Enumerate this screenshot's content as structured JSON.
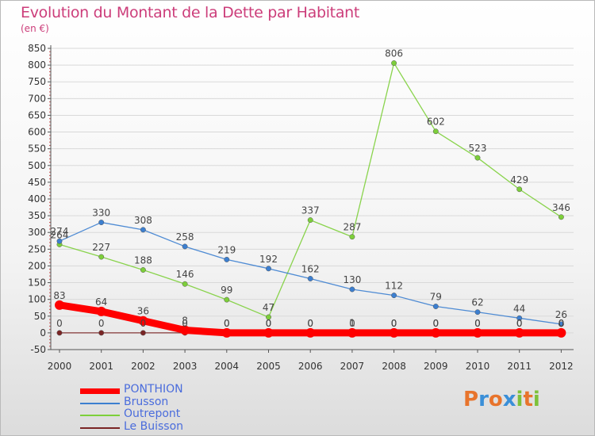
{
  "header": {
    "title": "Evolution du Montant de la Dette par Habitant",
    "subtitle": "(en €)"
  },
  "colors": {
    "title": "#cc3d7a",
    "legend_text": "#4a6cdc",
    "axis": "#555555",
    "grid": "#d9d9d9"
  },
  "chart_data": {
    "type": "line",
    "title": "Evolution du Montant de la Dette par Habitant",
    "subtitle": "(en €)",
    "x": [
      "2000",
      "2001",
      "2002",
      "2003",
      "2004",
      "2005",
      "2006",
      "2007",
      "2008",
      "2009",
      "2010",
      "2011",
      "2012"
    ],
    "ylim": [
      -50,
      850
    ],
    "yticks": [
      "-50",
      "0",
      "50",
      "100",
      "150",
      "200",
      "250",
      "300",
      "350",
      "400",
      "450",
      "500",
      "550",
      "600",
      "650",
      "700",
      "750",
      "800",
      "850"
    ],
    "grid": "horizontal",
    "legend_position": "bottom-left",
    "series": [
      {
        "name": "PONTHION",
        "color": "#ff0000",
        "values": [
          83,
          64,
          36,
          8,
          0,
          0,
          0,
          0,
          0,
          0,
          0,
          0,
          0
        ]
      },
      {
        "name": "Brusson",
        "color": "#3c7fd0",
        "values": [
          274,
          330,
          308,
          258,
          219,
          192,
          162,
          130,
          112,
          79,
          62,
          44,
          26
        ]
      },
      {
        "name": "Outrepont",
        "color": "#7dcf3a",
        "values": [
          264,
          227,
          188,
          146,
          99,
          47,
          337,
          287,
          806,
          602,
          523,
          429,
          346
        ]
      },
      {
        "name": "Le Buisson",
        "color": "#7a2525",
        "values": [
          0,
          0,
          0,
          0,
          0,
          0,
          0,
          1,
          0,
          0,
          0,
          0,
          0
        ]
      }
    ]
  },
  "legend": [
    {
      "label": "PONTHION",
      "color": "#ff0000"
    },
    {
      "label": "Brusson",
      "color": "#3c7fd0"
    },
    {
      "label": "Outrepont",
      "color": "#7dcf3a"
    },
    {
      "label": "Le Buisson",
      "color": "#7a2525"
    }
  ],
  "logo": {
    "text": "Proxiti",
    "letter_colors": [
      "#e8742c",
      "#3a8fd8",
      "#e8742c",
      "#3a8fd8",
      "#7dc13a",
      "#e8742c",
      "#7dc13a"
    ]
  }
}
